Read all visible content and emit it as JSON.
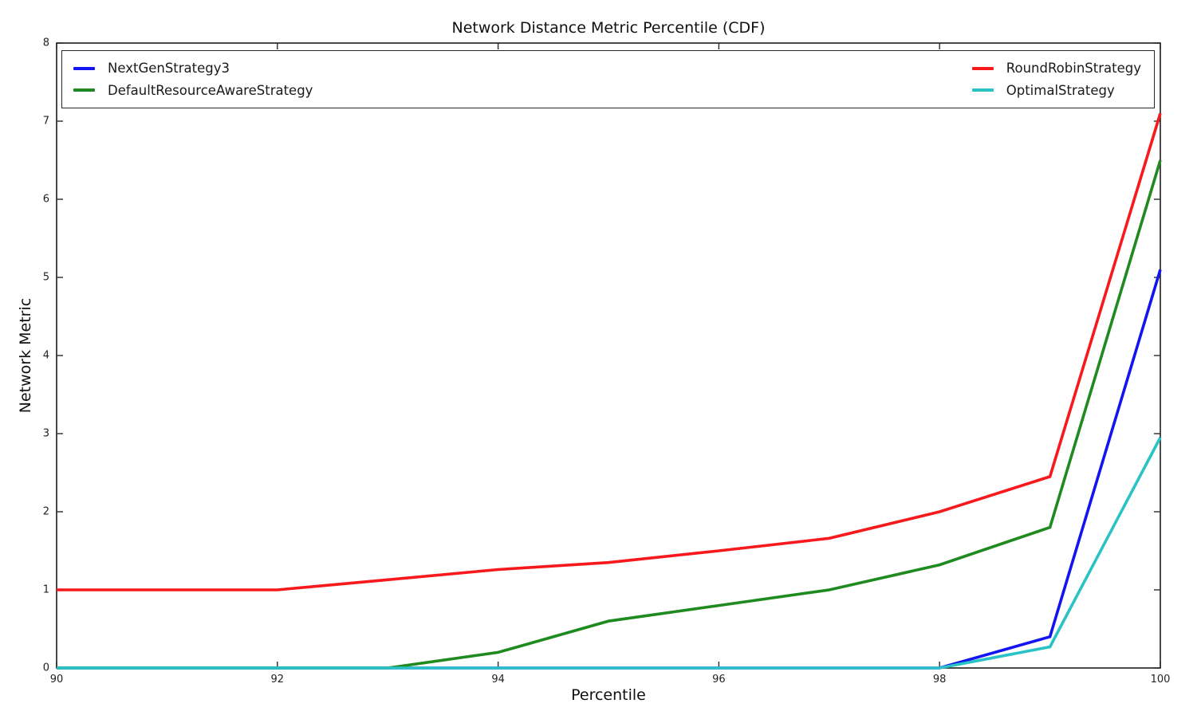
{
  "figure": {
    "title": "Network Distance Metric Percentile (CDF)",
    "xlabel": "Percentile",
    "ylabel": "Network Metric"
  },
  "chart_data": {
    "type": "line",
    "title": "Network Distance Metric Percentile (CDF)",
    "xlabel": "Percentile",
    "ylabel": "Network Metric",
    "xlim": [
      90,
      100
    ],
    "ylim": [
      0,
      8
    ],
    "xticks": [
      90,
      92,
      94,
      96,
      98,
      100
    ],
    "yticks": [
      0,
      1,
      2,
      3,
      4,
      5,
      6,
      7,
      8
    ],
    "grid": false,
    "legend_position": "top-inside, full-width framed box, two columns",
    "x": [
      90,
      91,
      92,
      93,
      94,
      95,
      96,
      97,
      98,
      99,
      100
    ],
    "series": [
      {
        "name": "NextGenStrategy3",
        "color": "#1414f0",
        "values": [
          0,
          0,
          0,
          0,
          0,
          0,
          0,
          0,
          0,
          0.4,
          5.1
        ]
      },
      {
        "name": "DefaultResourceAwareStrategy",
        "color": "#1f8a1f",
        "values": [
          0,
          0,
          0,
          0,
          0.2,
          0.6,
          0.8,
          1.0,
          1.32,
          1.8,
          6.5
        ]
      },
      {
        "name": "RoundRobinStrategy",
        "color": "#f8191c",
        "values": [
          1.0,
          1.0,
          1.0,
          1.13,
          1.26,
          1.35,
          1.5,
          1.66,
          2.0,
          2.45,
          7.1
        ]
      },
      {
        "name": "OptimalStrategy",
        "color": "#29c3c5",
        "values": [
          0,
          0,
          0,
          0,
          0,
          0,
          0,
          0,
          0,
          0.27,
          2.95
        ]
      }
    ],
    "legend_columns": [
      [
        "NextGenStrategy3",
        "DefaultResourceAwareStrategy"
      ],
      [
        "RoundRobinStrategy",
        "OptimalStrategy"
      ]
    ]
  }
}
